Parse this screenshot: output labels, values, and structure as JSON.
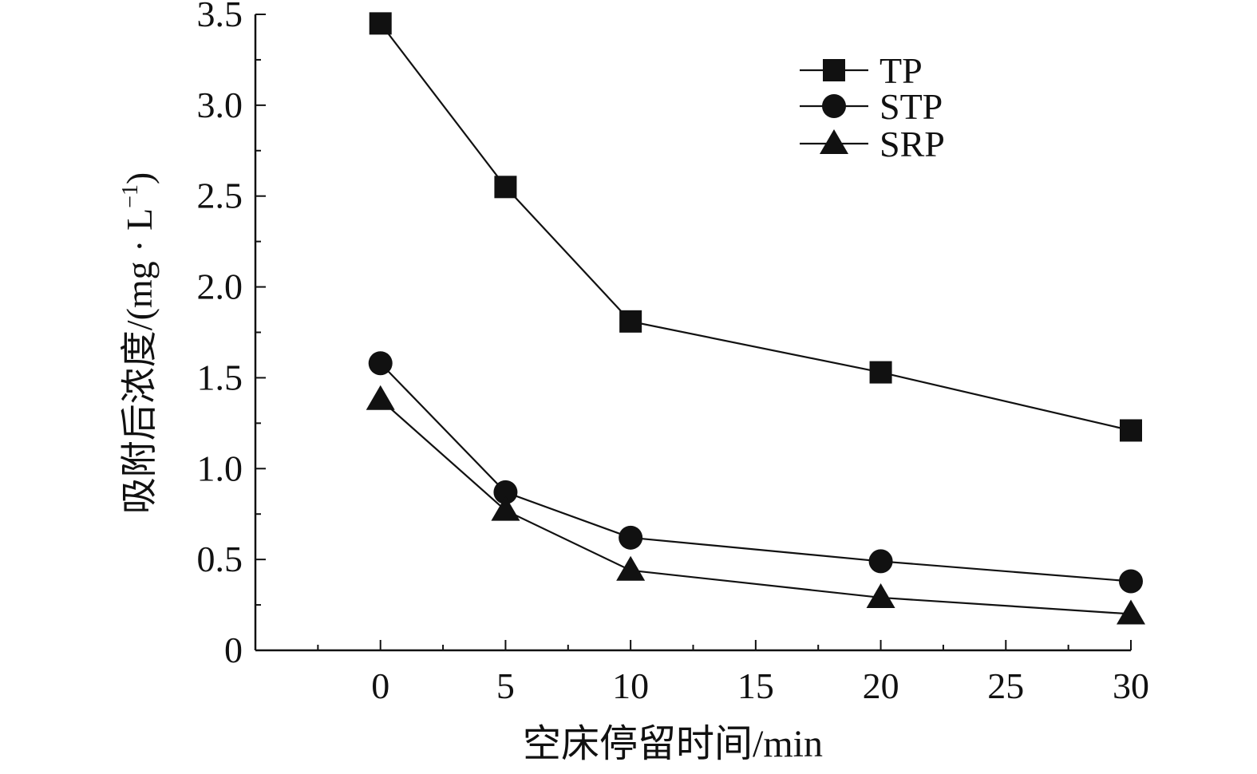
{
  "chart_data": {
    "type": "line",
    "title": "",
    "xlabel": "空床停留时间/min",
    "ylabel": {
      "main": "吸附后浓度/(mg · L",
      "sup": "−1",
      "close": ")"
    },
    "xlim": [
      -5,
      30
    ],
    "ylim": [
      0,
      3.5
    ],
    "x": [
      0,
      5,
      10,
      20,
      30
    ],
    "x_ticks": [
      0,
      5,
      10,
      15,
      20,
      25,
      30
    ],
    "x_tick_labels": [
      "0",
      "5",
      "10",
      "15",
      "20",
      "25",
      "30"
    ],
    "y_ticks": [
      0,
      0.5,
      1.0,
      1.5,
      2.0,
      2.5,
      3.0,
      3.5
    ],
    "y_tick_labels": [
      "0",
      "0.5",
      "1.0",
      "1.5",
      "2.0",
      "2.5",
      "3.0",
      "3.5"
    ],
    "grid": false,
    "legend_position": "top-right",
    "series": [
      {
        "name": "TP",
        "marker": "square",
        "values": [
          3.45,
          2.55,
          1.81,
          1.53,
          1.21
        ]
      },
      {
        "name": "STP",
        "marker": "circle",
        "values": [
          1.58,
          0.87,
          0.62,
          0.49,
          0.38
        ]
      },
      {
        "name": "SRP",
        "marker": "triangle",
        "values": [
          1.38,
          0.77,
          0.44,
          0.29,
          0.2
        ]
      }
    ],
    "colors": {
      "line": "#111111",
      "marker": "#111111",
      "axis": "#111111"
    }
  }
}
